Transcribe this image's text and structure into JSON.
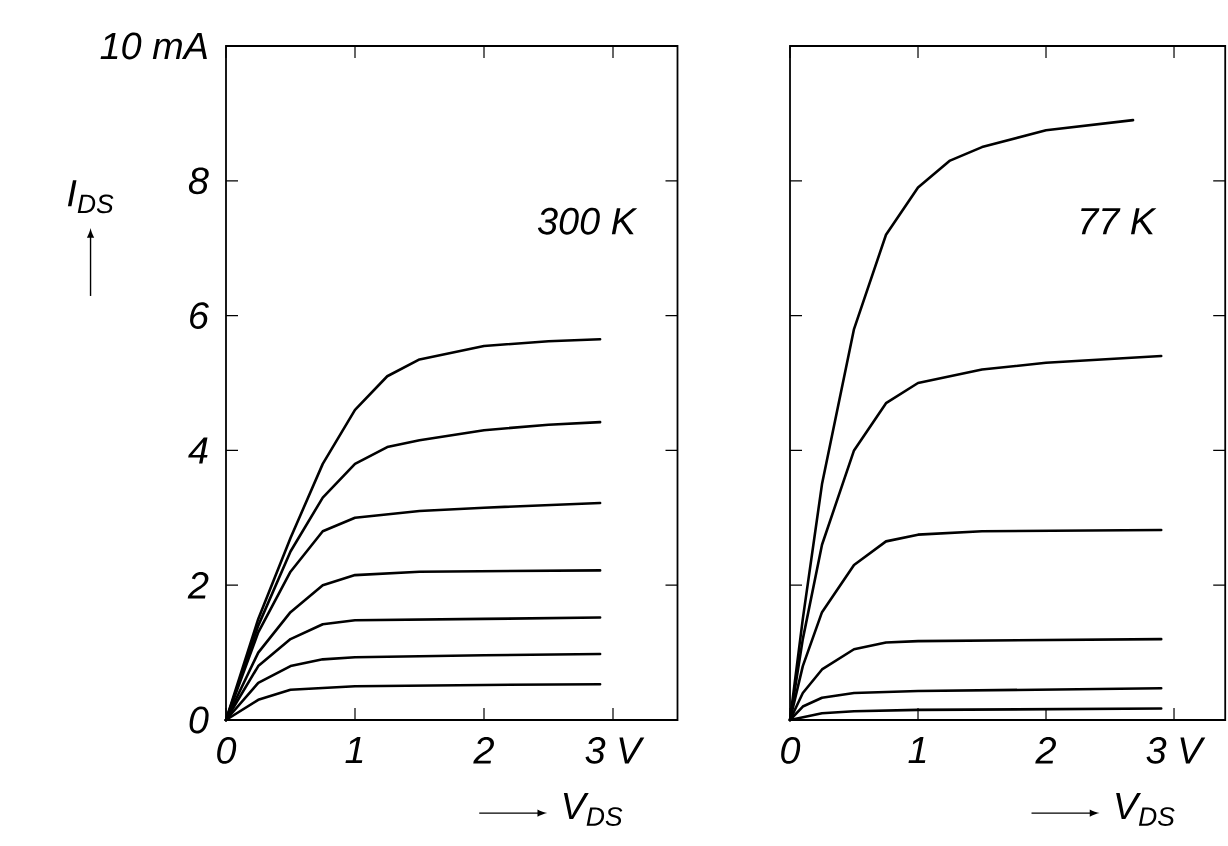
{
  "chart_data": [
    {
      "type": "line",
      "xlabel": "V$_{DS}$",
      "ylabel": "I$_{DS}$",
      "annotations": [
        "300 K"
      ],
      "xlim": [
        0,
        3.5
      ],
      "ylim": [
        0,
        10
      ],
      "xticks": [
        0,
        1,
        2,
        {
          "value": 3,
          "label": "3 V"
        }
      ],
      "yticks": [
        0,
        2,
        4,
        6,
        8,
        {
          "value": 10,
          "label": "10 mA"
        }
      ],
      "series": [
        {
          "color": "#000000",
          "x": [
            0,
            0.25,
            0.5,
            0.75,
            1,
            1.25,
            1.5,
            2,
            2.5,
            2.9
          ],
          "values": [
            0,
            1.5,
            2.7,
            3.8,
            4.6,
            5.1,
            5.35,
            5.55,
            5.62,
            5.65
          ]
        },
        {
          "color": "#000000",
          "x": [
            0,
            0.25,
            0.5,
            0.75,
            1,
            1.25,
            1.5,
            2,
            2.5,
            2.9
          ],
          "values": [
            0,
            1.4,
            2.5,
            3.3,
            3.8,
            4.05,
            4.15,
            4.3,
            4.38,
            4.42
          ]
        },
        {
          "color": "#000000",
          "x": [
            0,
            0.25,
            0.5,
            0.75,
            1,
            1.5,
            2,
            2.9
          ],
          "values": [
            0,
            1.3,
            2.2,
            2.8,
            3.0,
            3.1,
            3.15,
            3.22
          ]
        },
        {
          "color": "#000000",
          "x": [
            0,
            0.25,
            0.5,
            0.75,
            1,
            1.5,
            2.9
          ],
          "values": [
            0,
            1.0,
            1.6,
            2.0,
            2.15,
            2.2,
            2.22
          ]
        },
        {
          "color": "#000000",
          "x": [
            0,
            0.25,
            0.5,
            0.75,
            1,
            2,
            2.9
          ],
          "values": [
            0,
            0.8,
            1.2,
            1.42,
            1.48,
            1.5,
            1.52
          ]
        },
        {
          "color": "#000000",
          "x": [
            0,
            0.25,
            0.5,
            0.75,
            1,
            2,
            2.9
          ],
          "values": [
            0,
            0.55,
            0.8,
            0.9,
            0.93,
            0.96,
            0.98
          ]
        },
        {
          "color": "#000000",
          "x": [
            0,
            0.25,
            0.5,
            1,
            2,
            2.9
          ],
          "values": [
            0,
            0.3,
            0.45,
            0.5,
            0.52,
            0.53
          ]
        }
      ]
    },
    {
      "type": "line",
      "xlabel": "V$_{DS}$",
      "annotations": [
        "77 K"
      ],
      "xlim": [
        0,
        3.4
      ],
      "ylim": [
        0,
        10
      ],
      "tick_labels": "x",
      "xticks": [
        0,
        1,
        2,
        {
          "value": 3,
          "label": "3 V"
        }
      ],
      "yticks": [
        0,
        2,
        4,
        6,
        8,
        10
      ],
      "series": [
        {
          "color": "#000000",
          "x": [
            0,
            0.1,
            0.25,
            0.5,
            0.75,
            1,
            1.25,
            1.5,
            2,
            2.68
          ],
          "values": [
            0,
            1.5,
            3.5,
            5.8,
            7.2,
            7.9,
            8.3,
            8.5,
            8.75,
            8.9
          ]
        },
        {
          "color": "#000000",
          "x": [
            0,
            0.1,
            0.25,
            0.5,
            0.75,
            1,
            1.5,
            2,
            2.9
          ],
          "values": [
            0,
            1.2,
            2.6,
            4.0,
            4.7,
            5.0,
            5.2,
            5.3,
            5.4
          ]
        },
        {
          "color": "#000000",
          "x": [
            0,
            0.1,
            0.25,
            0.5,
            0.75,
            1,
            1.5,
            2.9
          ],
          "values": [
            0,
            0.8,
            1.6,
            2.3,
            2.65,
            2.75,
            2.8,
            2.82
          ]
        },
        {
          "color": "#000000",
          "x": [
            0,
            0.1,
            0.25,
            0.5,
            0.75,
            1,
            2.9
          ],
          "values": [
            0,
            0.4,
            0.75,
            1.05,
            1.15,
            1.17,
            1.2
          ]
        },
        {
          "color": "#000000",
          "x": [
            0,
            0.1,
            0.25,
            0.5,
            1,
            2.9
          ],
          "values": [
            0,
            0.2,
            0.33,
            0.4,
            0.43,
            0.47
          ]
        },
        {
          "color": "#000000",
          "x": [
            0,
            0.25,
            0.5,
            1,
            2.9
          ],
          "values": [
            0,
            0.1,
            0.13,
            0.15,
            0.17
          ]
        }
      ]
    }
  ]
}
